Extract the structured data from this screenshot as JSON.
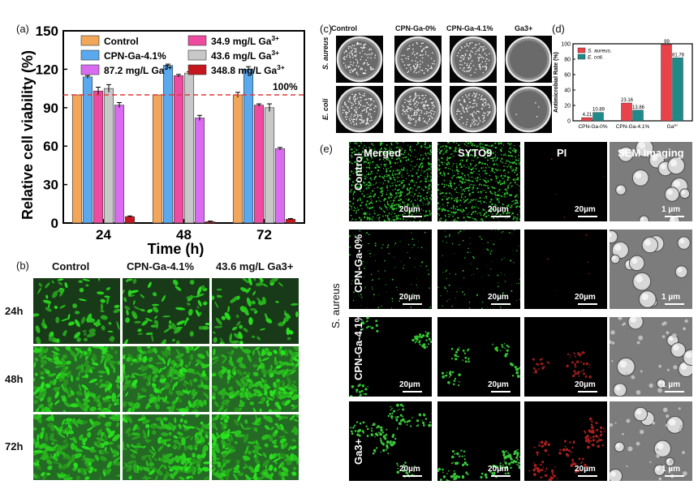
{
  "panels": {
    "a": "(a)",
    "b": "(b)",
    "c": "(c)",
    "d": "(d)",
    "e": "(e)"
  },
  "chart_data": [
    {
      "type": "bar",
      "panel": "a",
      "categories": [
        "24",
        "48",
        "72"
      ],
      "xlabel": "Time (h)",
      "ylabel": "Relative cell viability (%)",
      "ylim": [
        0,
        150
      ],
      "yticks": [
        "0",
        "30",
        "60",
        "90",
        "120",
        "150"
      ],
      "reference_line": {
        "value": 100,
        "label": "100%",
        "color": "#e03a3a"
      },
      "legend_position": "top",
      "series": [
        {
          "name": "Control",
          "color": "#f2a65a",
          "values": [
            100,
            100,
            100
          ],
          "err": [
            0,
            0,
            2
          ]
        },
        {
          "name": "CPN-Ga-4.1%",
          "color": "#5aa9ee",
          "values": [
            114,
            123,
            120
          ],
          "err": [
            1,
            1,
            2
          ]
        },
        {
          "name": "34.9 mg/L Ga3+",
          "color": "#ee4aa0",
          "values": [
            103,
            115,
            92
          ],
          "err": [
            3,
            1,
            1
          ]
        },
        {
          "name": "43.6 mg/L Ga3+",
          "color": "#c8c8c8",
          "values": [
            105,
            117,
            90
          ],
          "err": [
            3,
            1,
            3
          ]
        },
        {
          "name": "87.2 mg/L Ga3+",
          "color": "#d96bf0",
          "values": [
            92,
            82,
            58
          ],
          "err": [
            2,
            2,
            1
          ]
        },
        {
          "name": "348.8 mg/L Ga3+",
          "color": "#c4161c",
          "values": [
            5,
            1,
            3
          ],
          "err": [
            0.5,
            0.5,
            0.5
          ]
        }
      ]
    },
    {
      "type": "bar",
      "panel": "d",
      "categories": [
        "CPN-Ga-0%",
        "CPN-Ga-4.1%",
        "Ga3+"
      ],
      "ylabel": "Antimicrobial Rate (%)",
      "ylim": [
        0,
        100
      ],
      "yticks": [
        "0",
        "20",
        "40",
        "60",
        "80",
        "100"
      ],
      "legend_position": "top-left",
      "series": [
        {
          "name": "S. aureus.",
          "color": "#e8424a",
          "values": [
            4.21,
            23.16,
            99
          ],
          "labels": [
            "4.21",
            "23.16",
            "99"
          ]
        },
        {
          "name": "E. coli.",
          "color": "#1e8a8a",
          "values": [
            10.89,
            13.86,
            81.78
          ],
          "labels": [
            "10.89",
            "13.86",
            "81.78"
          ]
        }
      ]
    }
  ],
  "panel_b": {
    "columns": [
      "Control",
      "CPN-Ga-4.1%",
      "43.6 mg/L Ga3+"
    ],
    "rows": [
      "24h",
      "48h",
      "72h"
    ]
  },
  "panel_c": {
    "columns": [
      "Control",
      "CPN-Ga-0%",
      "CPN-Ga-4.1%",
      "Ga3+"
    ],
    "rows": [
      "S. aureus",
      "E. coli"
    ]
  },
  "panel_e": {
    "columns": [
      "Merged",
      "SYTO9",
      "PI",
      "SEM Imaging"
    ],
    "rows": [
      "Control",
      "CPN-Ga-0%",
      "CPN-Ga-4.1%",
      "Ga3+"
    ],
    "side_label": "S. aureus",
    "scalebar_fluor": "20µm",
    "scalebar_sem": "1 µm"
  }
}
